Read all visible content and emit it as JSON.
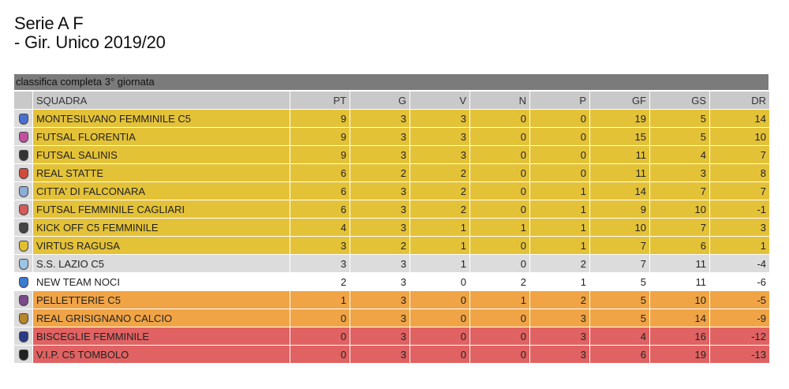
{
  "title": {
    "line1": "Serie A F",
    "line2": "- Gir. Unico 2019/20"
  },
  "subheader": "classifica completa 3° giornata",
  "columns": [
    "SQUADRA",
    "PT",
    "G",
    "V",
    "N",
    "P",
    "GF",
    "GS",
    "DR"
  ],
  "rows": [
    {
      "team": "MONTESILVANO FEMMINILE C5",
      "pt": "9",
      "g": "3",
      "v": "3",
      "n": "0",
      "p": "0",
      "gf": "19",
      "gs": "5",
      "dr": "14",
      "band": "gold",
      "logo_color": "#4a6fd1",
      "logo_icon": "team-crest-icon"
    },
    {
      "team": "FUTSAL FLORENTIA",
      "pt": "9",
      "g": "3",
      "v": "3",
      "n": "0",
      "p": "0",
      "gf": "15",
      "gs": "5",
      "dr": "10",
      "band": "gold",
      "logo_color": "#c24fa0",
      "logo_icon": "team-crest-icon"
    },
    {
      "team": "FUTSAL SALINIS",
      "pt": "9",
      "g": "3",
      "v": "3",
      "n": "0",
      "p": "0",
      "gf": "11",
      "gs": "4",
      "dr": "7",
      "band": "gold",
      "logo_color": "#333333",
      "logo_icon": "team-crest-icon"
    },
    {
      "team": "REAL STATTE",
      "pt": "6",
      "g": "2",
      "v": "2",
      "n": "0",
      "p": "0",
      "gf": "11",
      "gs": "3",
      "dr": "8",
      "band": "gold",
      "logo_color": "#d14a3a",
      "logo_icon": "team-crest-icon"
    },
    {
      "team": "CITTA' DI FALCONARA",
      "pt": "6",
      "g": "3",
      "v": "2",
      "n": "0",
      "p": "1",
      "gf": "14",
      "gs": "7",
      "dr": "7",
      "band": "gold",
      "logo_color": "#8aaed8",
      "logo_icon": "team-crest-icon"
    },
    {
      "team": "FUTSAL FEMMINILE CAGLIARI",
      "pt": "6",
      "g": "3",
      "v": "2",
      "n": "0",
      "p": "1",
      "gf": "9",
      "gs": "10",
      "dr": "-1",
      "band": "gold",
      "logo_color": "#d65a5a",
      "logo_icon": "team-crest-icon"
    },
    {
      "team": "KICK OFF C5 FEMMINILE",
      "pt": "4",
      "g": "3",
      "v": "1",
      "n": "1",
      "p": "1",
      "gf": "10",
      "gs": "7",
      "dr": "3",
      "band": "gold",
      "logo_color": "#444444",
      "logo_icon": "team-crest-icon"
    },
    {
      "team": "VIRTUS RAGUSA",
      "pt": "3",
      "g": "2",
      "v": "1",
      "n": "0",
      "p": "1",
      "gf": "7",
      "gs": "6",
      "dr": "1",
      "band": "gold",
      "logo_color": "#e0c030",
      "logo_icon": "team-crest-icon"
    },
    {
      "team": "S.S. LAZIO C5",
      "pt": "3",
      "g": "3",
      "v": "1",
      "n": "0",
      "p": "2",
      "gf": "7",
      "gs": "11",
      "dr": "-4",
      "band": "grey",
      "logo_color": "#9cc4e4",
      "logo_icon": "team-crest-icon"
    },
    {
      "team": "NEW TEAM NOCI",
      "pt": "2",
      "g": "3",
      "v": "0",
      "n": "2",
      "p": "1",
      "gf": "5",
      "gs": "11",
      "dr": "-6",
      "band": "white",
      "logo_color": "#3b7bd0",
      "logo_icon": "team-crest-icon"
    },
    {
      "team": "PELLETTERIE C5",
      "pt": "1",
      "g": "3",
      "v": "0",
      "n": "1",
      "p": "2",
      "gf": "5",
      "gs": "10",
      "dr": "-5",
      "band": "orange",
      "logo_color": "#7a4a8a",
      "logo_icon": "team-crest-icon"
    },
    {
      "team": "REAL GRISIGNANO CALCIO",
      "pt": "0",
      "g": "3",
      "v": "0",
      "n": "0",
      "p": "3",
      "gf": "5",
      "gs": "14",
      "dr": "-9",
      "band": "orange",
      "logo_color": "#b8862b",
      "logo_icon": "team-crest-icon"
    },
    {
      "team": "BISCEGLIE FEMMINILE",
      "pt": "0",
      "g": "3",
      "v": "0",
      "n": "0",
      "p": "3",
      "gf": "4",
      "gs": "16",
      "dr": "-12",
      "band": "red",
      "logo_color": "#2a3b8a",
      "logo_icon": "team-crest-icon"
    },
    {
      "team": "V.I.P. C5 TOMBOLO",
      "pt": "0",
      "g": "3",
      "v": "0",
      "n": "0",
      "p": "3",
      "gf": "6",
      "gs": "19",
      "dr": "-13",
      "band": "red",
      "logo_color": "#222222",
      "logo_icon": "team-crest-icon"
    }
  ]
}
